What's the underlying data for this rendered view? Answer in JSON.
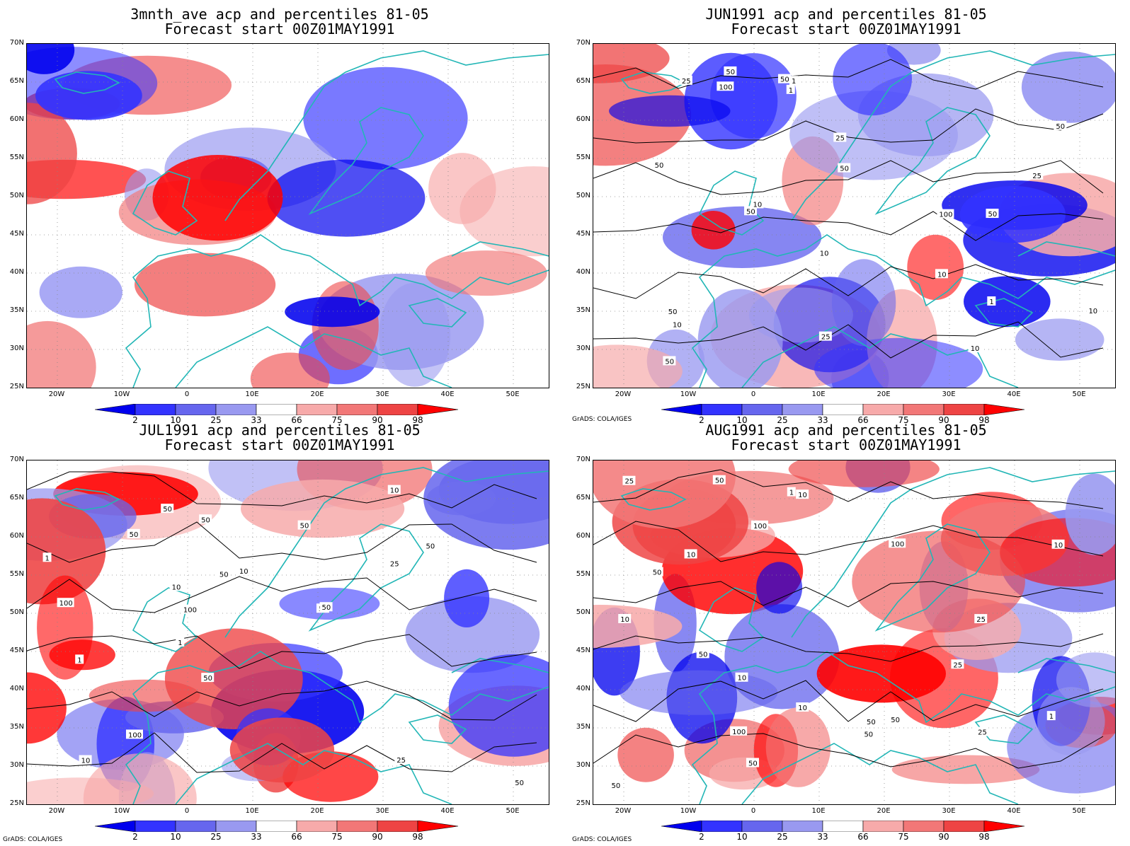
{
  "panels": [
    {
      "title_line1": "3mnth_ave acp and percentiles 81-05",
      "title_line2": "Forecast start 00Z01MAY1991",
      "contour_labels": []
    },
    {
      "title_line1": "JUN1991 acp and percentiles 81-05",
      "title_line2": "Forecast start 00Z01MAY1991",
      "contour_labels": [
        "50",
        "50",
        "50",
        "50",
        "50",
        "50",
        "100",
        "25",
        "50",
        "50",
        "25",
        "50",
        "25",
        "100",
        "10",
        "10",
        "10",
        "10",
        "1",
        "1",
        "1",
        "10",
        "25",
        "10"
      ]
    },
    {
      "title_line1": "JUL1991 acp and percentiles 81-05",
      "title_line2": "Forecast start 00Z01MAY1991",
      "contour_labels": [
        "50",
        "50",
        "50",
        "100",
        "50",
        "100",
        "50",
        "50",
        "50",
        "100",
        "50",
        "50",
        "10",
        "10",
        "50",
        "25",
        "25",
        "10",
        "10",
        "1",
        "1",
        "1"
      ]
    },
    {
      "title_line1": "AUG1991 acp and percentiles 81-05",
      "title_line2": "Forecast start 00Z01MAY1991",
      "contour_labels": [
        "50",
        "50",
        "50",
        "100",
        "50",
        "50",
        "100",
        "50",
        "100",
        "50",
        "50",
        "25",
        "25",
        "10",
        "10",
        "25",
        "10",
        "25",
        "10",
        "10",
        "1",
        "10",
        "1"
      ]
    }
  ],
  "lat_labels": [
    "70N",
    "65N",
    "60N",
    "55N",
    "50N",
    "45N",
    "40N",
    "35N",
    "30N",
    "25N"
  ],
  "lon_labels": [
    "20W",
    "10W",
    "0",
    "10E",
    "20E",
    "30E",
    "40E",
    "50E"
  ],
  "colorbar_labels": [
    "2",
    "10",
    "25",
    "33",
    "66",
    "75",
    "90",
    "98"
  ],
  "colorbar_colors": [
    "#0000ee",
    "#3333ff",
    "#6666ee",
    "#9999f0",
    "#ffffff",
    "#f7aaaa",
    "#f27777",
    "#ee4444",
    "#ff0000"
  ],
  "credit": "GrADS: COLA/IGES",
  "colors": {
    "coastline": "#22b6b6",
    "contour": "#000000",
    "grid": "#888888"
  }
}
